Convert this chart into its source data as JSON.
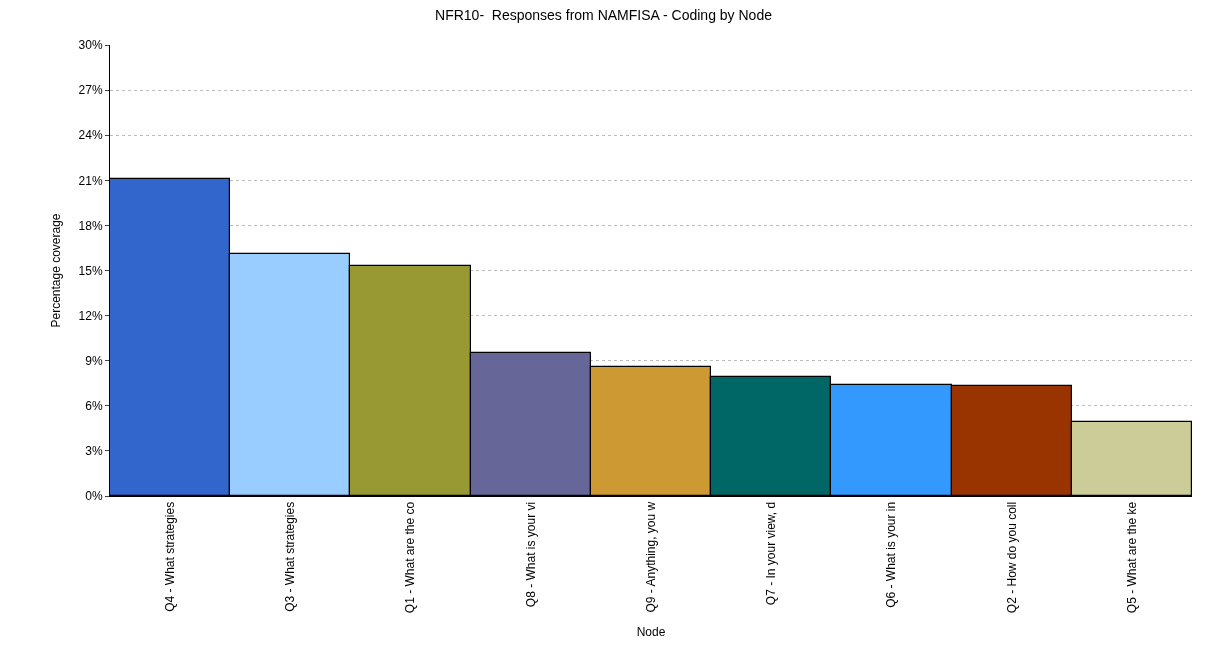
{
  "chart_data": {
    "type": "bar",
    "title": "NFR10-  Responses from NAMFISA - Coding by Node",
    "xlabel": "Node",
    "ylabel": "Percentage coverage",
    "categories": [
      "Q4 - What strategies",
      "Q3 - What strategies",
      "Q1 - What are the co",
      "Q8 - What is your vi",
      "Q9 - Anything, you w",
      "Q7 - In your view, d",
      "Q6 - What is your in",
      "Q2 - How do you coll",
      "Q5 - What are the ke"
    ],
    "values": [
      21.1,
      16.1,
      15.3,
      9.5,
      8.6,
      7.9,
      7.4,
      7.3,
      4.9
    ],
    "colors": [
      "#3366cc",
      "#99ccff",
      "#999933",
      "#666699",
      "#cc9933",
      "#006666",
      "#3399ff",
      "#993300",
      "#cccc99"
    ],
    "ylim": [
      0,
      30
    ],
    "yticks": [
      {
        "value": 0,
        "label": "0%"
      },
      {
        "value": 3,
        "label": "3%"
      },
      {
        "value": 6,
        "label": "6%"
      },
      {
        "value": 9,
        "label": "9%"
      },
      {
        "value": 12,
        "label": "12%"
      },
      {
        "value": 15,
        "label": "15%"
      },
      {
        "value": 18,
        "label": "18%"
      },
      {
        "value": 21,
        "label": "21%"
      },
      {
        "value": 24,
        "label": "24%"
      },
      {
        "value": 27,
        "label": "27%"
      },
      {
        "value": 30,
        "label": "30%"
      }
    ],
    "grid": "y"
  }
}
